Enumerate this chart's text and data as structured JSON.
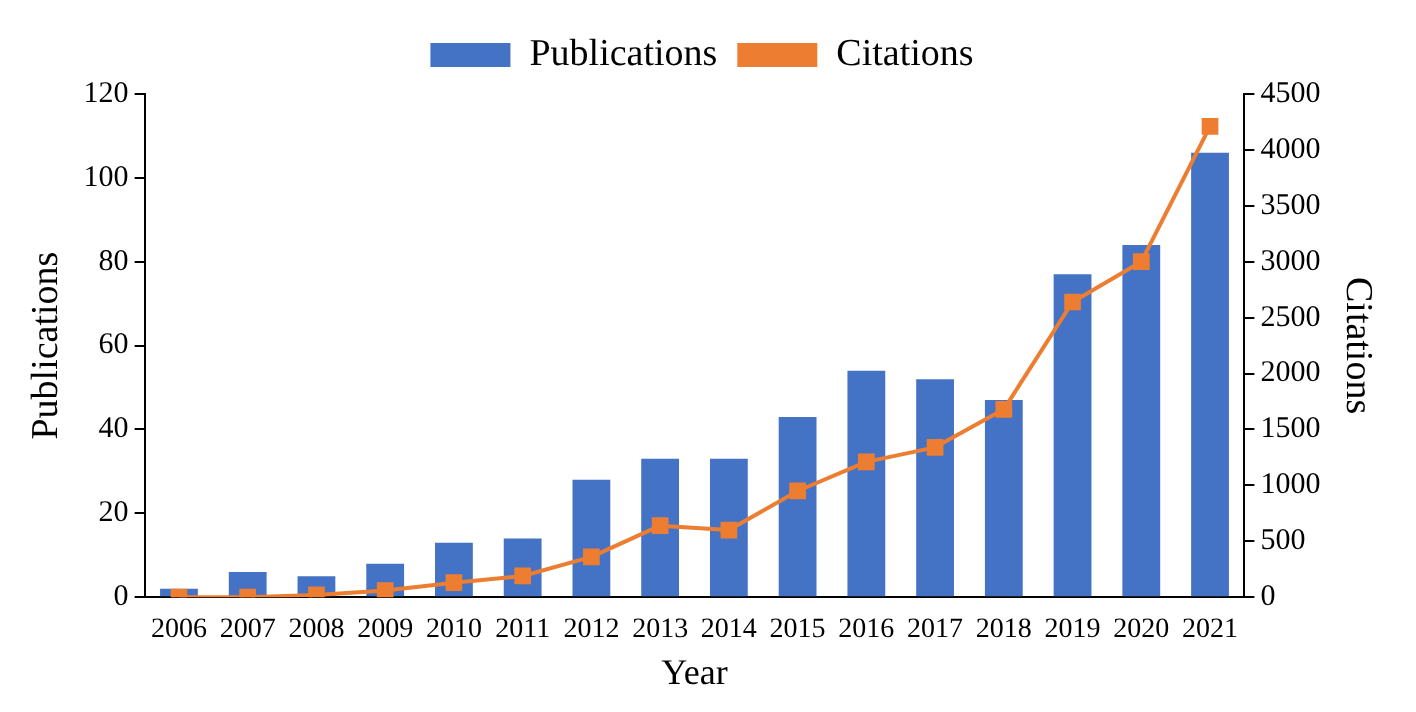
{
  "chart_data": {
    "type": "bar",
    "xlabel": "Year",
    "ylabel": "Publications",
    "y2label": "Citations",
    "categories": [
      "2006",
      "2007",
      "2008",
      "2009",
      "2010",
      "2011",
      "2012",
      "2013",
      "2014",
      "2015",
      "2016",
      "2017",
      "2018",
      "2019",
      "2020",
      "2021"
    ],
    "series": [
      {
        "name": "Publications",
        "color": "#4472c4",
        "values": [
          2,
          6,
          5,
          8,
          13,
          14,
          28,
          33,
          33,
          43,
          54,
          52,
          47,
          77,
          84,
          106
        ]
      },
      {
        "name": "Citations",
        "type": "line",
        "axis": "y2",
        "color": "#ed7d31",
        "marker": "square",
        "values": [
          0,
          0,
          20,
          60,
          130,
          190,
          360,
          640,
          600,
          950,
          1210,
          1340,
          1680,
          2640,
          3000,
          4210
        ]
      }
    ],
    "ylim": [
      0,
      120
    ],
    "yticks": [
      0,
      20,
      40,
      60,
      80,
      100,
      120
    ],
    "y2lim": [
      0,
      4500
    ],
    "y2ticks": [
      0,
      500,
      1000,
      1500,
      2000,
      2500,
      3000,
      3500,
      4000,
      4500
    ],
    "grid": false,
    "legend": "top"
  }
}
